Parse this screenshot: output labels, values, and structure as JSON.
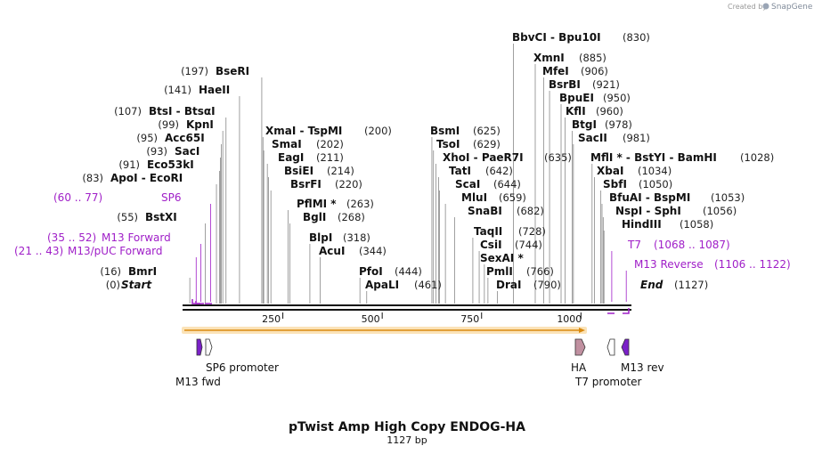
{
  "credit": {
    "prefix": "Created by",
    "brand": "SnapGene"
  },
  "title": "pTwist Amp High Copy ENDOG-HA",
  "length_label": "1127 bp",
  "sequence_length": 1127,
  "axis_ticks": [
    "250",
    "500",
    "750",
    "1000"
  ],
  "axis_tick_values": [
    250,
    500,
    750,
    1000
  ],
  "sites": [
    {
      "pos": 0,
      "name": "Start",
      "pos_label": "(0)"
    },
    {
      "pos": 16,
      "name": "BmrI",
      "pos_label": "(16)"
    },
    {
      "pos": 55,
      "name": "BstXI",
      "pos_label": "(55)"
    },
    {
      "pos": 83,
      "name": "ApoI - EcoRI",
      "pos_label": "(83)"
    },
    {
      "pos": 91,
      "name": "Eco53kI",
      "pos_label": "(91)"
    },
    {
      "pos": 93,
      "name": "SacI",
      "pos_label": "(93)"
    },
    {
      "pos": 95,
      "name": "Acc65I",
      "pos_label": "(95)"
    },
    {
      "pos": 99,
      "name": "KpnI",
      "pos_label": "(99)"
    },
    {
      "pos": 107,
      "name": "BtsI - BtsαI",
      "pos_label": "(107)"
    },
    {
      "pos": 141,
      "name": "HaeII",
      "pos_label": "(141)"
    },
    {
      "pos": 197,
      "name": "BseRI",
      "pos_label": "(197)"
    },
    {
      "pos": 200,
      "name": "XmaI - TspMI",
      "pos_label": "(200)"
    },
    {
      "pos": 202,
      "name": "SmaI",
      "pos_label": "(202)"
    },
    {
      "pos": 211,
      "name": "EagI",
      "pos_label": "(211)"
    },
    {
      "pos": 214,
      "name": "BsiEI",
      "pos_label": "(214)"
    },
    {
      "pos": 220,
      "name": "BsrFI",
      "pos_label": "(220)"
    },
    {
      "pos": 263,
      "name": "PflMI *",
      "pos_label": "(263)"
    },
    {
      "pos": 268,
      "name": "BglI",
      "pos_label": "(268)"
    },
    {
      "pos": 318,
      "name": "BlpI",
      "pos_label": "(318)"
    },
    {
      "pos": 344,
      "name": "AcuI",
      "pos_label": "(344)"
    },
    {
      "pos": 444,
      "name": "PfoI",
      "pos_label": "(444)"
    },
    {
      "pos": 461,
      "name": "ApaLI",
      "pos_label": "(461)"
    },
    {
      "pos": 625,
      "name": "BsmI",
      "pos_label": "(625)"
    },
    {
      "pos": 629,
      "name": "TsoI",
      "pos_label": "(629)"
    },
    {
      "pos": 635,
      "name": "XhoI - PaeR7I",
      "pos_label": "(635)"
    },
    {
      "pos": 642,
      "name": "TatI",
      "pos_label": "(642)"
    },
    {
      "pos": 644,
      "name": "ScaI",
      "pos_label": "(644)"
    },
    {
      "pos": 659,
      "name": "MluI",
      "pos_label": "(659)"
    },
    {
      "pos": 682,
      "name": "SnaBI",
      "pos_label": "(682)"
    },
    {
      "pos": 728,
      "name": "TaqII",
      "pos_label": "(728)"
    },
    {
      "pos": 744,
      "name": "CsiI",
      "pos_label": "(744)"
    },
    {
      "pos": 757,
      "name": "SexAI *",
      "pos_label": ""
    },
    {
      "pos": 766,
      "name": "PmlI",
      "pos_label": "(766)"
    },
    {
      "pos": 790,
      "name": "DraI",
      "pos_label": "(790)"
    },
    {
      "pos": 830,
      "name": "BbvCI - Bpu10I",
      "pos_label": "(830)"
    },
    {
      "pos": 885,
      "name": "XmnI",
      "pos_label": "(885)"
    },
    {
      "pos": 906,
      "name": "MfeI",
      "pos_label": "(906)"
    },
    {
      "pos": 921,
      "name": "BsrBI",
      "pos_label": "(921)"
    },
    {
      "pos": 950,
      "name": "BpuEI",
      "pos_label": "(950)"
    },
    {
      "pos": 960,
      "name": "KflI",
      "pos_label": "(960)"
    },
    {
      "pos": 978,
      "name": "BtgI",
      "pos_label": "(978)"
    },
    {
      "pos": 981,
      "name": "SacII",
      "pos_label": "(981)"
    },
    {
      "pos": 1028,
      "name": "MflI * - BstYI - BamHI",
      "pos_label": "(1028)"
    },
    {
      "pos": 1034,
      "name": "XbaI",
      "pos_label": "(1034)"
    },
    {
      "pos": 1050,
      "name": "SbfI",
      "pos_label": "(1050)"
    },
    {
      "pos": 1053,
      "name": "BfuAI - BspMI",
      "pos_label": "(1053)"
    },
    {
      "pos": 1056,
      "name": "NspI - SphI",
      "pos_label": "(1056)"
    },
    {
      "pos": 1058,
      "name": "HindIII",
      "pos_label": "(1058)"
    },
    {
      "pos": 1127,
      "name": "End",
      "pos_label": "(1127)"
    }
  ],
  "primers": [
    {
      "start": 21,
      "end": 43,
      "name": "M13/pUC Forward",
      "range_label": "(21 .. 43)"
    },
    {
      "start": 35,
      "end": 52,
      "name": "M13 Forward",
      "range_label": "(35 .. 52)"
    },
    {
      "start": 60,
      "end": 77,
      "name": "SP6",
      "range_label": "(60 .. 77)"
    },
    {
      "start": 1068,
      "end": 1087,
      "name": "T7",
      "range_label": "(1068 .. 1087)"
    },
    {
      "start": 1106,
      "end": 1122,
      "name": "M13 Reverse",
      "range_label": "(1106 .. 1122)"
    }
  ],
  "features": [
    {
      "name": "M13 fwd",
      "start": 35,
      "end": 52,
      "color": "#7a20c8"
    },
    {
      "name": "SP6 promoter",
      "start": 60,
      "end": 77,
      "color": "#ffffff"
    },
    {
      "name": "HA",
      "start": 982,
      "end": 1009,
      "color": "#c090a0"
    },
    {
      "name": "T7 promoter",
      "start": 1068,
      "end": 1087,
      "color": "#ffffff"
    },
    {
      "name": "M13 rev",
      "start": 1106,
      "end": 1122,
      "color": "#7a20c8"
    }
  ],
  "orf": {
    "start": 0,
    "end": 1009,
    "color": "#f5a623"
  },
  "colors": {
    "primer": "#a020c8",
    "leader": "#888888",
    "backbone": "#111111"
  }
}
